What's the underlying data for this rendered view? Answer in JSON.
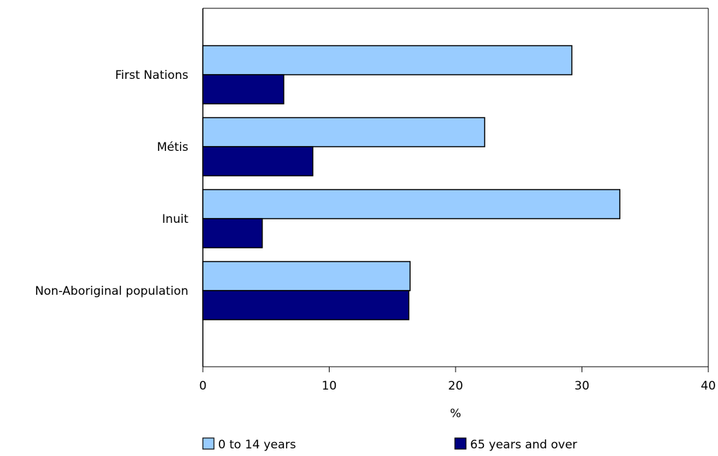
{
  "chart_data": {
    "type": "bar",
    "orientation": "horizontal",
    "title": "",
    "xlabel": "%",
    "ylabel": "",
    "categories": [
      "First Nations",
      "Métis",
      "Inuit",
      "Non-Aboriginal population"
    ],
    "series": [
      {
        "name": "0 to 14 years",
        "values": [
          29.2,
          22.3,
          33.0,
          16.4
        ],
        "color": "#99ccff"
      },
      {
        "name": "65 years and over",
        "values": [
          6.4,
          8.7,
          4.7,
          16.3
        ],
        "color": "#000080"
      }
    ],
    "xlim": [
      0,
      40
    ],
    "xticks": [
      0,
      10,
      20,
      30,
      40
    ],
    "grid": false,
    "legend_position": "bottom"
  }
}
